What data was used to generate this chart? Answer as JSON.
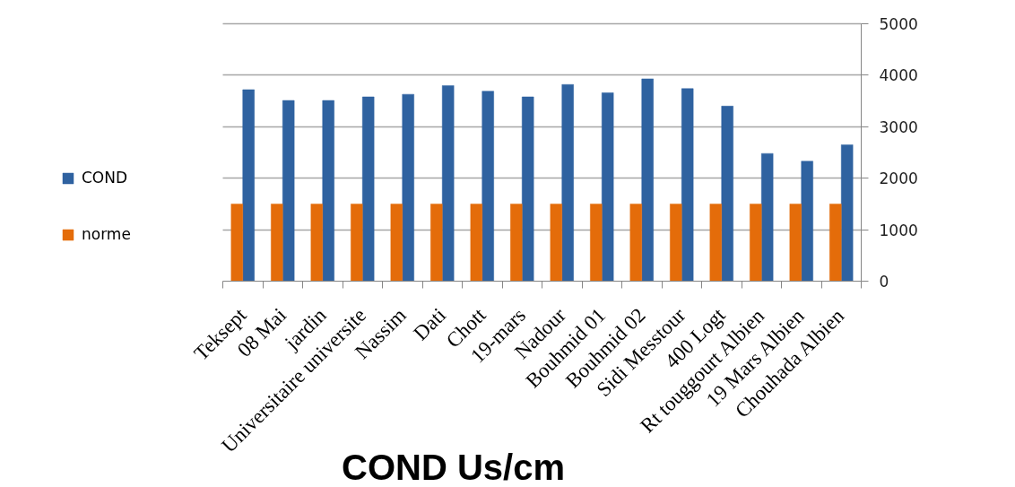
{
  "chart_data": {
    "type": "bar",
    "title": "COND Us/cm",
    "categories": [
      "Teksept",
      "08 Mai",
      "jardin",
      "Universitaire universite",
      "Nassim",
      "Dati",
      "Chott",
      "19-mars",
      "Nadour",
      "Bouhmid 01",
      "Bouhmid 02",
      "Sidi Messtour",
      "400 Logt",
      "Rt touggourt Albien",
      "19 Mars Albien",
      "Chouhada Albien"
    ],
    "series": [
      {
        "name": "COND",
        "color": "#2f62a0",
        "values": [
          3720,
          3510,
          3510,
          3580,
          3630,
          3800,
          3690,
          3580,
          3820,
          3660,
          3930,
          3740,
          3400,
          2480,
          2330,
          2650
        ]
      },
      {
        "name": "norme",
        "color": "#e46c0a",
        "values": [
          1500,
          1500,
          1500,
          1500,
          1500,
          1500,
          1500,
          1500,
          1500,
          1500,
          1500,
          1500,
          1500,
          1500,
          1500,
          1500
        ]
      }
    ],
    "ylim": [
      0,
      5000
    ],
    "yticks": [
      0,
      1000,
      2000,
      3000,
      4000,
      5000
    ],
    "grid": "y",
    "legend": "left"
  }
}
